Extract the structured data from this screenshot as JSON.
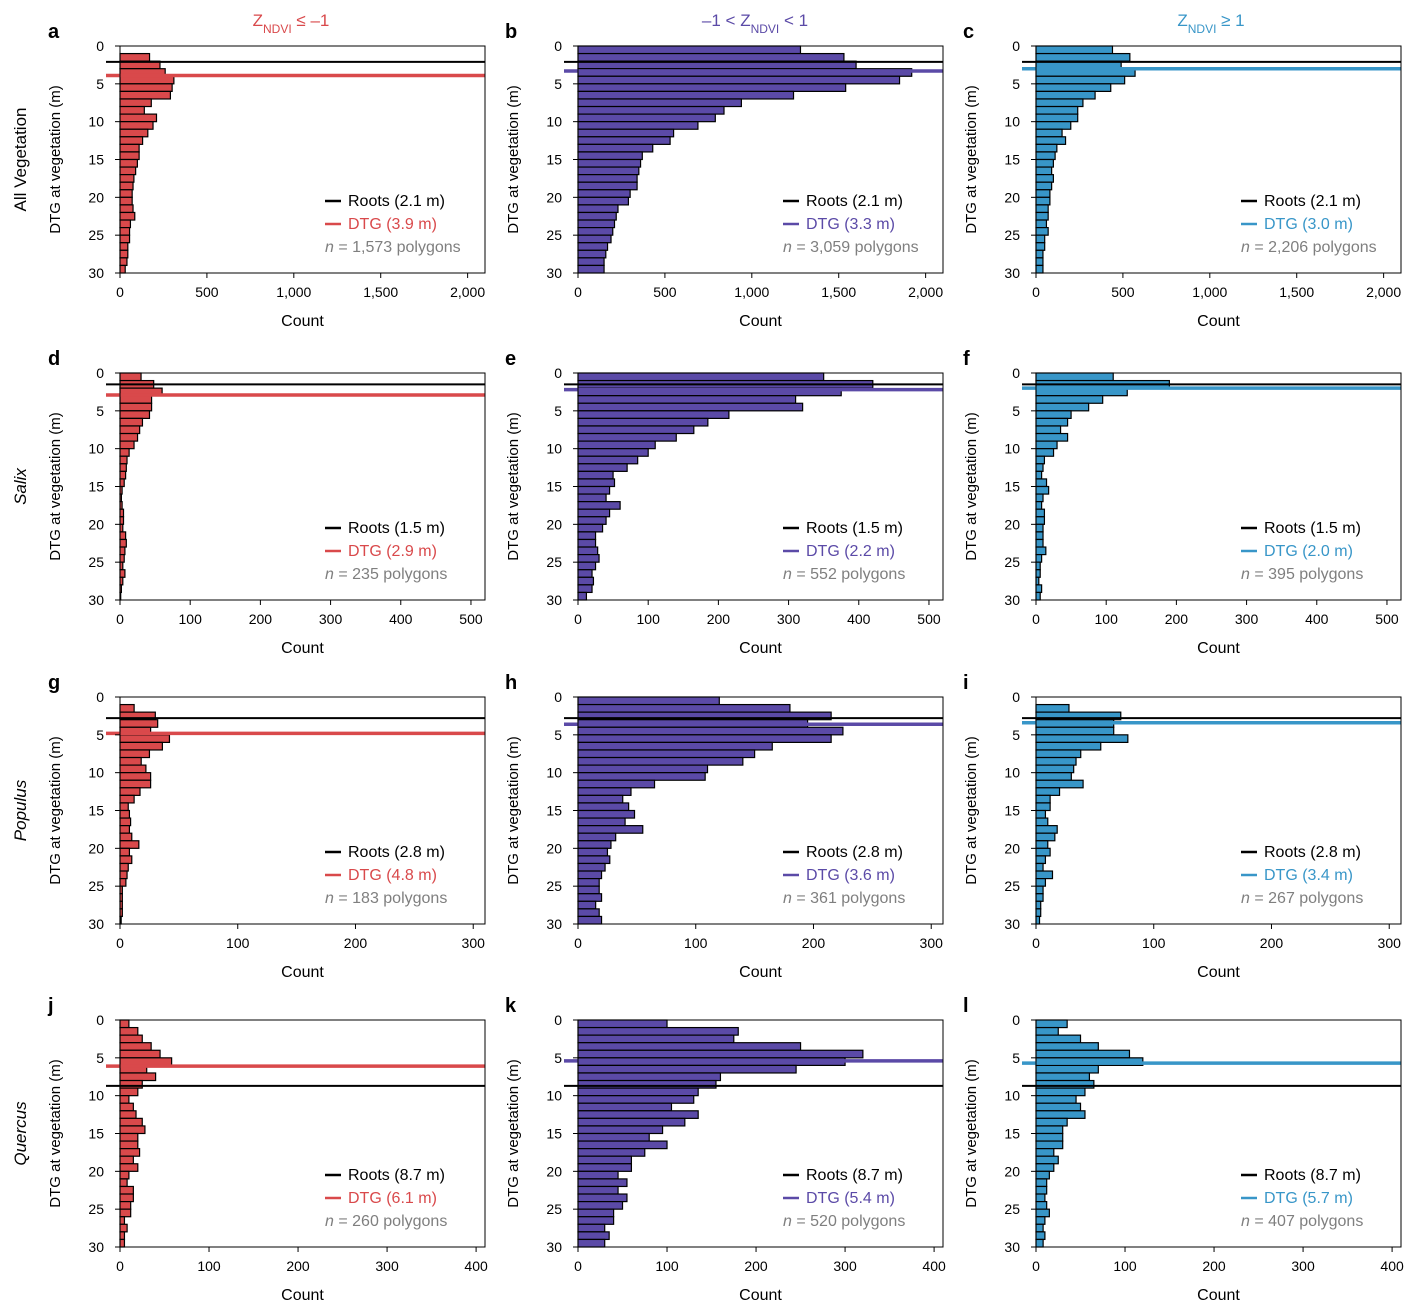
{
  "figure": {
    "column_headers": [
      {
        "parts": [
          {
            "t": "Z"
          },
          {
            "t": "NDVI",
            "sub": true
          },
          {
            "t": " ≤ –1"
          }
        ]
      },
      {
        "parts": [
          {
            "t": "–1 < Z"
          },
          {
            "t": "NDVI",
            "sub": true
          },
          {
            "t": " < 1"
          }
        ]
      },
      {
        "parts": [
          {
            "t": "Z"
          },
          {
            "t": "NDVI",
            "sub": true
          },
          {
            "t": " ≥ 1"
          }
        ]
      }
    ],
    "row_labels": [
      "All Vegetation",
      "Salix",
      "Populus",
      "Quercus"
    ],
    "colors": {
      "red": "#d9494b",
      "purple": "#5b4aa7",
      "blue": "#3896c8",
      "black": "#000000",
      "gray": "#7f7f7f"
    }
  },
  "chart_data": [
    {
      "panel": "a",
      "type": "bar",
      "orientation": "horizontal",
      "ylabel": "DTG at vegetation (m)",
      "xlabel": "Count",
      "xlim": [
        0,
        2100
      ],
      "ylim": [
        0,
        30
      ],
      "xticks": [
        0,
        500,
        1000,
        1500,
        2000
      ],
      "xtick_labels": [
        "0",
        "500",
        "1,000",
        "1,500",
        "2,000"
      ],
      "yticks": [
        0,
        5,
        10,
        15,
        20,
        25,
        30
      ],
      "color": "red",
      "bin_start": 1,
      "bin_width": 1,
      "values": [
        170,
        230,
        260,
        310,
        300,
        290,
        180,
        140,
        210,
        190,
        160,
        130,
        110,
        110,
        100,
        90,
        80,
        75,
        70,
        70,
        75,
        85,
        60,
        55,
        55,
        45,
        45,
        40,
        30
      ],
      "roots": 2.1,
      "dtg": 3.9,
      "legend": {
        "roots": "Roots (2.1 m)",
        "dtg": "DTG (3.9 m)",
        "n_prefix": "n",
        "n_text": " = 1,573 polygons"
      }
    },
    {
      "panel": "b",
      "type": "bar",
      "orientation": "horizontal",
      "ylabel": "DTG at vegetation (m)",
      "xlabel": "Count",
      "xlim": [
        0,
        2100
      ],
      "ylim": [
        0,
        30
      ],
      "xticks": [
        0,
        500,
        1000,
        1500,
        2000
      ],
      "xtick_labels": [
        "0",
        "500",
        "1,000",
        "1,500",
        "2,000"
      ],
      "yticks": [
        0,
        5,
        10,
        15,
        20,
        25,
        30
      ],
      "color": "purple",
      "bin_start": 0,
      "bin_width": 1,
      "values": [
        1280,
        1530,
        1600,
        1920,
        1850,
        1540,
        1240,
        940,
        840,
        790,
        690,
        550,
        530,
        430,
        370,
        360,
        350,
        340,
        340,
        300,
        290,
        230,
        220,
        210,
        200,
        190,
        170,
        160,
        150,
        150
      ],
      "roots": 2.1,
      "dtg": 3.3,
      "legend": {
        "roots": "Roots (2.1 m)",
        "dtg": "DTG (3.3 m)",
        "n_prefix": "n",
        "n_text": " = 3,059 polygons"
      }
    },
    {
      "panel": "c",
      "type": "bar",
      "orientation": "horizontal",
      "ylabel": "DTG at vegetation (m)",
      "xlabel": "Count",
      "xlim": [
        0,
        2100
      ],
      "ylim": [
        0,
        30
      ],
      "xticks": [
        0,
        500,
        1000,
        1500,
        2000
      ],
      "xtick_labels": [
        "0",
        "500",
        "1,000",
        "1,500",
        "2,000"
      ],
      "yticks": [
        0,
        5,
        10,
        15,
        20,
        25,
        30
      ],
      "color": "blue",
      "bin_start": 0,
      "bin_width": 1,
      "values": [
        440,
        540,
        490,
        570,
        510,
        430,
        340,
        270,
        240,
        240,
        200,
        150,
        170,
        120,
        110,
        100,
        90,
        100,
        90,
        80,
        80,
        70,
        70,
        60,
        70,
        50,
        50,
        40,
        40,
        40
      ],
      "roots": 2.1,
      "dtg": 3.0,
      "legend": {
        "roots": "Roots (2.1 m)",
        "dtg": "DTG (3.0 m)",
        "n_prefix": "n",
        "n_text": " = 2,206 polygons"
      }
    },
    {
      "panel": "d",
      "type": "bar",
      "orientation": "horizontal",
      "ylabel": "DTG at vegetation (m)",
      "xlabel": "Count",
      "xlim": [
        0,
        520
      ],
      "ylim": [
        0,
        30
      ],
      "xticks": [
        0,
        100,
        200,
        300,
        400,
        500
      ],
      "xtick_labels": [
        "0",
        "100",
        "200",
        "300",
        "400",
        "500"
      ],
      "yticks": [
        0,
        5,
        10,
        15,
        20,
        25,
        30
      ],
      "color": "red",
      "bin_start": 0,
      "bin_width": 1,
      "values": [
        30,
        48,
        60,
        45,
        45,
        42,
        32,
        28,
        25,
        20,
        13,
        10,
        9,
        8,
        6,
        3,
        2,
        3,
        5,
        5,
        4,
        8,
        9,
        7,
        6,
        4,
        7,
        4,
        2,
        1
      ],
      "roots": 1.5,
      "dtg": 2.9,
      "legend": {
        "roots": "Roots (1.5 m)",
        "dtg": "DTG (2.9 m)",
        "n_prefix": "n",
        "n_text": " = 235 polygons"
      }
    },
    {
      "panel": "e",
      "type": "bar",
      "orientation": "horizontal",
      "ylabel": "DTG at vegetation (m)",
      "xlabel": "Count",
      "xlim": [
        0,
        520
      ],
      "ylim": [
        0,
        30
      ],
      "xticks": [
        0,
        100,
        200,
        300,
        400,
        500
      ],
      "xtick_labels": [
        "0",
        "100",
        "200",
        "300",
        "400",
        "500"
      ],
      "yticks": [
        0,
        5,
        10,
        15,
        20,
        25,
        30
      ],
      "color": "purple",
      "bin_start": 0,
      "bin_width": 1,
      "values": [
        350,
        420,
        375,
        310,
        320,
        215,
        185,
        165,
        140,
        110,
        100,
        85,
        70,
        50,
        52,
        45,
        40,
        60,
        45,
        40,
        35,
        25,
        25,
        28,
        30,
        25,
        20,
        22,
        20,
        12
      ],
      "roots": 1.5,
      "dtg": 2.2,
      "legend": {
        "roots": "Roots (1.5 m)",
        "dtg": "DTG (2.2 m)",
        "n_prefix": "n",
        "n_text": " = 552 polygons"
      }
    },
    {
      "panel": "f",
      "type": "bar",
      "orientation": "horizontal",
      "ylabel": "DTG at vegetation (m)",
      "xlabel": "Count",
      "xlim": [
        0,
        520
      ],
      "ylim": [
        0,
        30
      ],
      "xticks": [
        0,
        100,
        200,
        300,
        400,
        500
      ],
      "xtick_labels": [
        "0",
        "100",
        "200",
        "300",
        "400",
        "500"
      ],
      "yticks": [
        0,
        5,
        10,
        15,
        20,
        25,
        30
      ],
      "color": "blue",
      "bin_start": 0,
      "bin_width": 1,
      "values": [
        110,
        190,
        130,
        95,
        75,
        50,
        45,
        35,
        45,
        30,
        25,
        12,
        10,
        8,
        15,
        18,
        10,
        8,
        12,
        12,
        10,
        10,
        10,
        14,
        8,
        6,
        6,
        4,
        8,
        6
      ],
      "roots": 1.5,
      "dtg": 2.0,
      "legend": {
        "roots": "Roots (1.5 m)",
        "dtg": "DTG (2.0 m)",
        "n_prefix": "n",
        "n_text": " = 395 polygons"
      }
    },
    {
      "panel": "g",
      "type": "bar",
      "orientation": "horizontal",
      "ylabel": "DTG at vegetation (m)",
      "xlabel": "Count",
      "xlim": [
        0,
        310
      ],
      "ylim": [
        0,
        30
      ],
      "xticks": [
        0,
        100,
        200,
        300
      ],
      "xtick_labels": [
        "0",
        "100",
        "200",
        "300"
      ],
      "yticks": [
        0,
        5,
        10,
        15,
        20,
        25,
        30
      ],
      "color": "red",
      "bin_start": 1,
      "bin_width": 1,
      "values": [
        12,
        30,
        32,
        26,
        42,
        36,
        25,
        18,
        22,
        26,
        26,
        17,
        12,
        7,
        8,
        9,
        8,
        10,
        16,
        8,
        10,
        7,
        6,
        5,
        2,
        2,
        2,
        2,
        1
      ],
      "roots": 2.8,
      "dtg": 4.8,
      "legend": {
        "roots": "Roots (2.8 m)",
        "dtg": "DTG (4.8 m)",
        "n_prefix": "n",
        "n_text": " = 183 polygons"
      }
    },
    {
      "panel": "h",
      "type": "bar",
      "orientation": "horizontal",
      "ylabel": "DTG at vegetation (m)",
      "xlabel": "Count",
      "xlim": [
        0,
        310
      ],
      "ylim": [
        0,
        30
      ],
      "xticks": [
        0,
        100,
        200,
        300
      ],
      "xtick_labels": [
        "0",
        "100",
        "200",
        "300"
      ],
      "yticks": [
        0,
        5,
        10,
        15,
        20,
        25,
        30
      ],
      "color": "purple",
      "bin_start": 0,
      "bin_width": 1,
      "values": [
        120,
        180,
        215,
        195,
        225,
        215,
        165,
        150,
        140,
        110,
        108,
        65,
        45,
        38,
        43,
        48,
        40,
        55,
        32,
        28,
        25,
        27,
        23,
        20,
        18,
        18,
        20,
        15,
        18,
        20
      ],
      "roots": 2.8,
      "dtg": 3.6,
      "legend": {
        "roots": "Roots (2.8 m)",
        "dtg": "DTG (3.6 m)",
        "n_prefix": "n",
        "n_text": " = 361 polygons"
      }
    },
    {
      "panel": "i",
      "type": "bar",
      "orientation": "horizontal",
      "ylabel": "DTG at vegetation (m)",
      "xlabel": "Count",
      "xlim": [
        0,
        310
      ],
      "ylim": [
        0,
        30
      ],
      "xticks": [
        0,
        100,
        200,
        300
      ],
      "xtick_labels": [
        "0",
        "100",
        "200",
        "300"
      ],
      "yticks": [
        0,
        5,
        10,
        15,
        20,
        25,
        30
      ],
      "color": "blue",
      "bin_start": 1,
      "bin_width": 1,
      "values": [
        28,
        72,
        66,
        66,
        78,
        55,
        38,
        34,
        32,
        30,
        40,
        20,
        12,
        12,
        8,
        10,
        18,
        16,
        10,
        12,
        8,
        6,
        14,
        8,
        6,
        6,
        4,
        4,
        3
      ],
      "roots": 2.8,
      "dtg": 3.4,
      "legend": {
        "roots": "Roots (2.8 m)",
        "dtg": "DTG (3.4 m)",
        "n_prefix": "n",
        "n_text": " = 267 polygons"
      }
    },
    {
      "panel": "j",
      "type": "bar",
      "orientation": "horizontal",
      "ylabel": "DTG at vegetation (m)",
      "xlabel": "Count",
      "xlim": [
        0,
        410
      ],
      "ylim": [
        0,
        30
      ],
      "xticks": [
        0,
        100,
        200,
        300,
        400
      ],
      "xtick_labels": [
        "0",
        "100",
        "200",
        "300",
        "400"
      ],
      "yticks": [
        0,
        5,
        10,
        15,
        20,
        25,
        30
      ],
      "color": "red",
      "bin_start": 0,
      "bin_width": 1,
      "values": [
        10,
        20,
        25,
        35,
        45,
        58,
        30,
        40,
        25,
        20,
        10,
        15,
        18,
        25,
        28,
        20,
        20,
        22,
        15,
        20,
        10,
        8,
        15,
        15,
        12,
        12,
        5,
        8,
        5,
        5
      ],
      "roots": 8.7,
      "dtg": 6.1,
      "legend": {
        "roots": "Roots (8.7 m)",
        "dtg": "DTG (6.1 m)",
        "n_prefix": "n",
        "n_text": " = 260 polygons"
      }
    },
    {
      "panel": "k",
      "type": "bar",
      "orientation": "horizontal",
      "ylabel": "DTG at vegetation (m)",
      "xlabel": "Count",
      "xlim": [
        0,
        410
      ],
      "ylim": [
        0,
        30
      ],
      "xticks": [
        0,
        100,
        200,
        300,
        400
      ],
      "xtick_labels": [
        "0",
        "100",
        "200",
        "300",
        "400"
      ],
      "yticks": [
        0,
        5,
        10,
        15,
        20,
        25,
        30
      ],
      "color": "purple",
      "bin_start": 0,
      "bin_width": 1,
      "values": [
        100,
        180,
        175,
        250,
        320,
        300,
        245,
        160,
        155,
        135,
        130,
        105,
        135,
        120,
        95,
        80,
        100,
        75,
        60,
        60,
        45,
        55,
        45,
        55,
        50,
        40,
        40,
        30,
        35,
        30
      ],
      "roots": 8.7,
      "dtg": 5.4,
      "legend": {
        "roots": "Roots (8.7 m)",
        "dtg": "DTG (5.4 m)",
        "n_prefix": "n",
        "n_text": " = 520 polygons"
      }
    },
    {
      "panel": "l",
      "type": "bar",
      "orientation": "horizontal",
      "ylabel": "DTG at vegetation (m)",
      "xlabel": "Count",
      "xlim": [
        0,
        410
      ],
      "ylim": [
        0,
        30
      ],
      "xticks": [
        0,
        100,
        200,
        300,
        400
      ],
      "xtick_labels": [
        "0",
        "100",
        "200",
        "300",
        "400"
      ],
      "yticks": [
        0,
        5,
        10,
        15,
        20,
        25,
        30
      ],
      "color": "blue",
      "bin_start": 0,
      "bin_width": 1,
      "values": [
        35,
        25,
        50,
        70,
        105,
        120,
        70,
        60,
        65,
        55,
        45,
        50,
        55,
        35,
        30,
        30,
        30,
        20,
        25,
        20,
        15,
        12,
        12,
        10,
        12,
        15,
        10,
        8,
        10,
        8
      ],
      "roots": 8.7,
      "dtg": 5.7,
      "legend": {
        "roots": "Roots (8.7 m)",
        "dtg": "DTG (5.7 m)",
        "n_prefix": "n",
        "n_text": " = 407 polygons"
      }
    }
  ]
}
